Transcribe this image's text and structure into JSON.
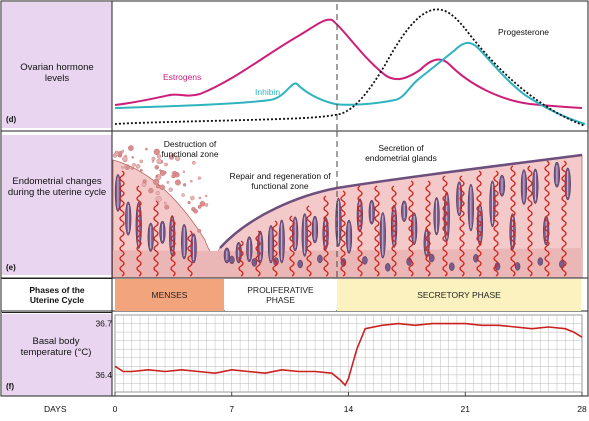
{
  "panels": {
    "ovarian": {
      "title": "Ovarian hormone levels",
      "tag": "(d)"
    },
    "endometrial": {
      "title": "Endometrial changes during the uterine cycle",
      "tag": "(e)"
    },
    "temperature": {
      "title": "Basal body temperature (°C)",
      "tag": "(f)"
    }
  },
  "hormones": {
    "estrogens_label": "Estrogens",
    "inhibin_label": "Inhibin",
    "progesterone_label": "Progesterone",
    "colors": {
      "estrogens": "#cc1f7a",
      "inhibin": "#2fb3bf",
      "progesterone": "#111111"
    }
  },
  "annotations": {
    "destruction": "Destruction of functional zone",
    "repair": "Repair and regeneration of functional zone",
    "secretion": "Secretion of endometrial glands"
  },
  "phases": {
    "header": "Phases of the Uterine Cycle",
    "items": [
      {
        "label": "MENSES",
        "start_day": 0,
        "end_day": 7,
        "color": "#f2a57d"
      },
      {
        "label": "PROLIFERATIVE PHASE",
        "start_day": 7,
        "end_day": 14,
        "color": "#ffffff"
      },
      {
        "label": "SECRETORY PHASE",
        "start_day": 14,
        "end_day": 28,
        "color": "#fbf2bf"
      }
    ]
  },
  "axis": {
    "label": "DAYS",
    "ticks": [
      0,
      7,
      14,
      21,
      28
    ]
  },
  "chart_data": {
    "type": "line",
    "y_ticks": [
      36.4,
      36.7
    ],
    "ylim": [
      36.3,
      36.75
    ],
    "xlim": [
      0,
      28
    ],
    "color": "#cc2020",
    "x": [
      0,
      0.5,
      1,
      2,
      3,
      4,
      5,
      6,
      7,
      8,
      9,
      10,
      11,
      12,
      13,
      13.5,
      13.8,
      14,
      14.5,
      15,
      16,
      17,
      18,
      19,
      20,
      21,
      22,
      23,
      24,
      25,
      26,
      27,
      27.5,
      28
    ],
    "y": [
      36.45,
      36.42,
      36.42,
      36.43,
      36.42,
      36.43,
      36.42,
      36.41,
      36.43,
      36.42,
      36.41,
      36.43,
      36.42,
      36.42,
      36.41,
      36.37,
      36.34,
      36.38,
      36.55,
      36.67,
      36.69,
      36.7,
      36.69,
      36.7,
      36.7,
      36.7,
      36.69,
      36.69,
      36.68,
      36.67,
      36.68,
      36.67,
      36.65,
      36.62
    ]
  }
}
